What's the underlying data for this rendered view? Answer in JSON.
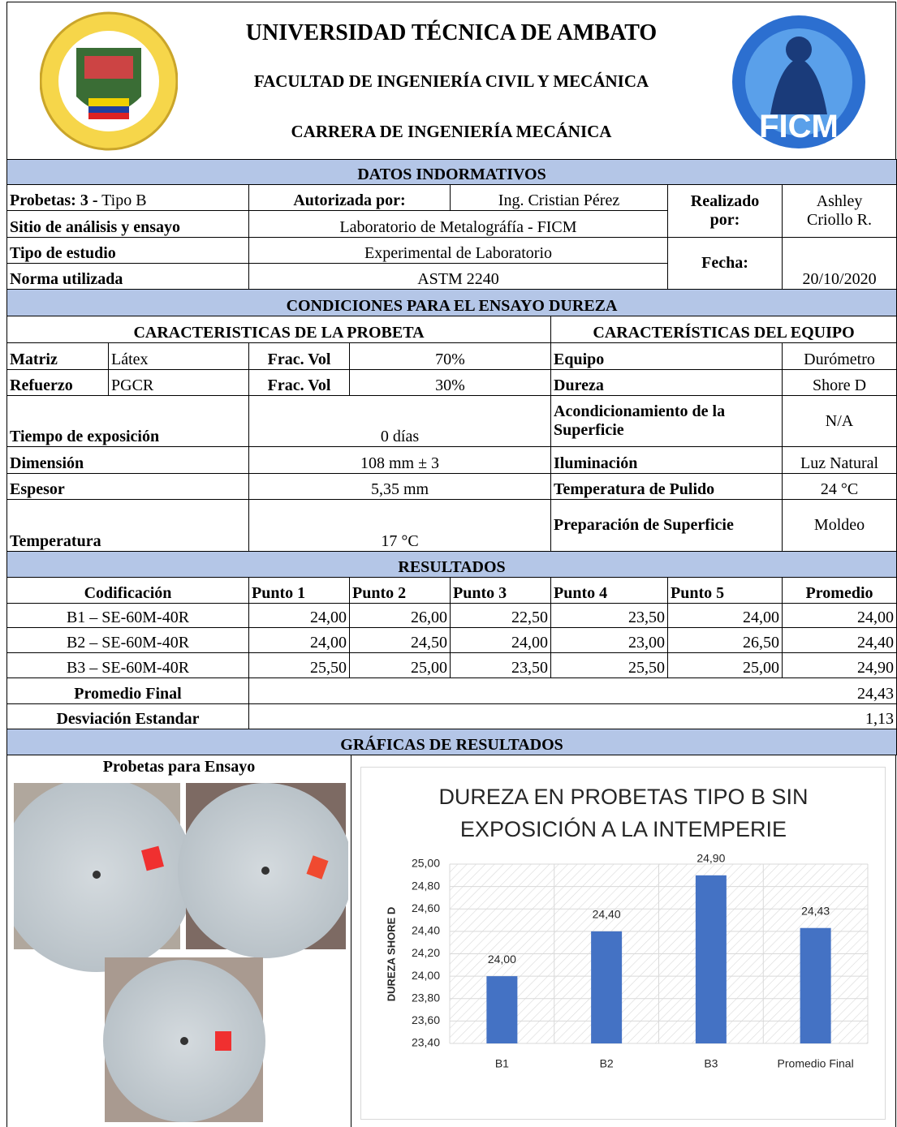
{
  "header": {
    "university": "UNIVERSIDAD TÉCNICA DE AMBATO",
    "faculty": "FACULTAD DE INGENIERÍA CIVIL Y MECÁNICA",
    "career": "CARRERA DE INGENIERÍA MECÁNICA",
    "logo_text": "FICM"
  },
  "info": {
    "title": "DATOS INDORMATIVOS",
    "probetas_label": "Probetas: 3 -",
    "probetas_value": "Tipo B",
    "authorized_label": "Autorizada por:",
    "authorized_value": "Ing. Cristian Pérez",
    "made_by_label": [
      "Realizado",
      "por:"
    ],
    "made_by_value": [
      "Ashley",
      "Criollo R."
    ],
    "site_label": "Sitio de análisis y ensayo",
    "site_value": "Laboratorio de Metalográfía - FICM",
    "study_label": "Tipo de estudio",
    "study_value": "Experimental de Laboratorio",
    "date_label": "Fecha:",
    "date_value": "20/10/2020",
    "norm_label": "Norma utilizada",
    "norm_value": "ASTM 2240"
  },
  "conditions": {
    "title": "CONDICIONES PARA EL ENSAYO DUREZA",
    "specimen_title": "CARACTERISTICAS DE LA PROBETA",
    "equipment_title": "CARACTERÍSTICAS DEL EQUIPO",
    "components": [
      [
        "Matriz",
        "Látex",
        "Frac. Vol",
        "70%",
        "Equipo",
        "Durómetro"
      ],
      [
        "Refuerzo",
        "PGCR",
        "Frac. Vol",
        "30%",
        "Dureza",
        "Shore D"
      ]
    ],
    "rows": [
      [
        "Tiempo de exposición",
        "0 días",
        "Acondicionamiento de la Superficie",
        "N/A"
      ],
      [
        "Dimensión",
        "108 mm ± 3",
        "Iluminación",
        "Luz Natural"
      ],
      [
        "Espesor",
        "5,35 mm",
        "Temperatura de Pulido",
        "24 °C"
      ],
      [
        "Temperatura",
        "17 °C",
        "Preparación de Superficie",
        "Moldeo"
      ]
    ]
  },
  "results": {
    "title": "RESULTADOS",
    "header": [
      "Codificación",
      "Punto 1",
      "Punto 2",
      "Punto 3",
      "Punto 4",
      "Punto 5",
      "Promedio"
    ],
    "rows": [
      [
        "B1 – SE-60M-40R",
        "24,00",
        "26,00",
        "22,50",
        "23,50",
        "24,00",
        "24,00"
      ],
      [
        "B2 – SE-60M-40R",
        "24,00",
        "24,50",
        "24,00",
        "23,00",
        "26,50",
        "24,40"
      ],
      [
        "B3 – SE-60M-40R",
        "25,50",
        "25,00",
        "23,50",
        "25,50",
        "25,00",
        "24,90"
      ]
    ],
    "final_label": "Promedio Final",
    "final_value": "24,43",
    "std_label": "Desviación Estandar",
    "std_value": "1,13"
  },
  "graphs": {
    "title": "GRÁFICAS DE RESULTADOS",
    "photos_title": "Probetas para Ensayo"
  },
  "chart_data": {
    "type": "bar",
    "title": "DUREZA EN PROBETAS TIPO B SIN EXPOSICIÓN A LA INTEMPERIE",
    "y_label": "DUREZA SHORE D",
    "categories": [
      "B1",
      "B2",
      "B3",
      "Promedio Final"
    ],
    "values": [
      24.0,
      24.4,
      24.9,
      24.43
    ],
    "value_labels": [
      "24,00",
      "24,40",
      "24,90",
      "24,43"
    ],
    "color": "#4472c4",
    "ylim": [
      23.4,
      25.0
    ],
    "yticks": [
      {
        "value": 23.4,
        "label": "23,40"
      },
      {
        "value": 23.6,
        "label": "23,60"
      },
      {
        "value": 23.8,
        "label": "23,80"
      },
      {
        "value": 24.0,
        "label": "24,00"
      },
      {
        "value": 24.2,
        "label": "24,20"
      },
      {
        "value": 24.4,
        "label": "24,40"
      },
      {
        "value": 24.6,
        "label": "24,60"
      },
      {
        "value": 24.8,
        "label": "24,80"
      },
      {
        "value": 25.0,
        "label": "25,00"
      }
    ],
    "grid": true
  }
}
